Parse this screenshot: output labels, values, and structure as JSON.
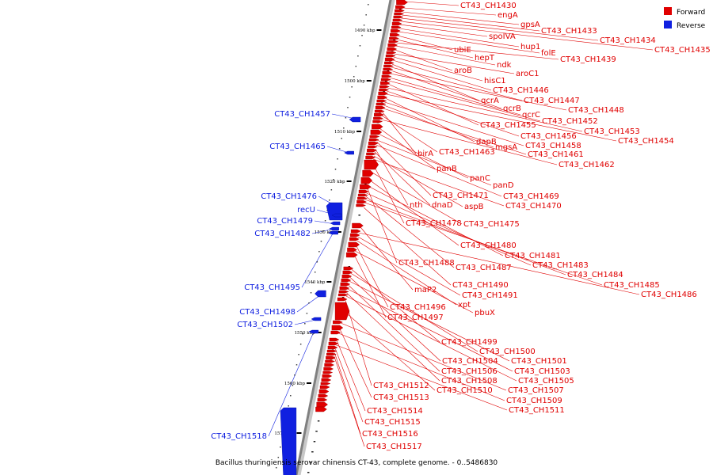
{
  "caption": "Bacillus thuringiensis serovar chinensis CT-43, complete genome. - 0..5486830",
  "legend": {
    "forward": "Forward",
    "reverse": "Reverse"
  },
  "colors": {
    "forward": "#e00000",
    "reverse": "#1020e0",
    "axis": "#808080"
  },
  "ticks": [
    "1490 kbp",
    "1500 kbp",
    "1510 kbp",
    "1520 kbp",
    "1530 kbp",
    "1540 kbp",
    "1550 kbp",
    "1560 kbp",
    "1570 kbp"
  ],
  "forward_labels": [
    "CT43_CH1430",
    "engA",
    "gpsA",
    "CT43_CH1433",
    "CT43_CH1434",
    "CT43_CH1435",
    "spoIVA",
    "hup1",
    "folE",
    "ubiE",
    "hepT",
    "CT43_CH1439",
    "ndk",
    "aroB",
    "aroC1",
    "hisC1",
    "CT43_CH1446",
    "qcrA",
    "CT43_CH1447",
    "qcrB",
    "CT43_CH1448",
    "qcrC",
    "CT43_CH1452",
    "CT43_CH1455",
    "CT43_CH1453",
    "CT43_CH1456",
    "CT43_CH1454",
    "dapB",
    "CT43_CH1458",
    "mgsA",
    "CT43_CH1461",
    "birA",
    "CT43_CH1463",
    "CT43_CH1462",
    "panB",
    "panC",
    "panD",
    "CT43_CH1471",
    "CT43_CH1469",
    "nth",
    "dnaD",
    "aspB",
    "CT43_CH1470",
    "CT43_CH1478",
    "CT43_CH1475",
    "CT43_CH1480",
    "CT43_CH1481",
    "CT43_CH1488",
    "CT43_CH1483",
    "CT43_CH1487",
    "CT43_CH1484",
    "CT43_CH1485",
    "CT43_CH1490",
    "maP2",
    "CT43_CH1486",
    "CT43_CH1491",
    "xpt",
    "CT43_CH1496",
    "pbuX",
    "CT43_CH1497",
    "CT43_CH1499",
    "CT43_CH1500",
    "CT43_CH1504",
    "CT43_CH1501",
    "CT43_CH1506",
    "CT43_CH1503",
    "CT43_CH1508",
    "CT43_CH1505",
    "CT43_CH1512",
    "CT43_CH1510",
    "CT43_CH1507",
    "CT43_CH1513",
    "CT43_CH1509",
    "CT43_CH1514",
    "CT43_CH1511",
    "CT43_CH1515",
    "CT43_CH1516",
    "CT43_CH1517"
  ],
  "reverse_labels": [
    "CT43_CH1457",
    "CT43_CH1465",
    "CT43_CH1476",
    "recU",
    "CT43_CH1479",
    "CT43_CH1482",
    "CT43_CH1495",
    "CT43_CH1498",
    "CT43_CH1502",
    "CT43_CH1518"
  ]
}
